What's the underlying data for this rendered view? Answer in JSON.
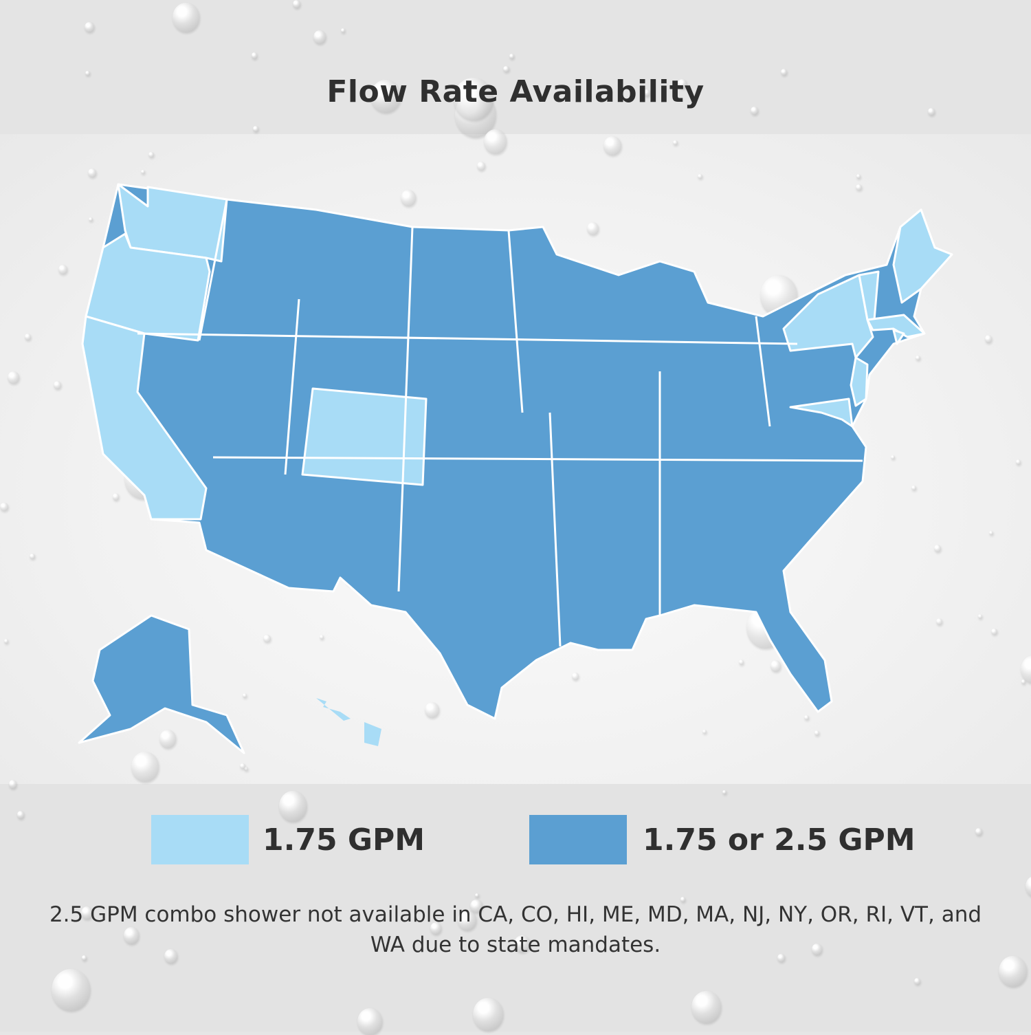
{
  "title": "Flow Rate Availability",
  "colors": {
    "light": "#a8dcf6",
    "dark": "#5b9fd2",
    "border": "#ffffff"
  },
  "legend": [
    {
      "label": "1.75 GPM",
      "color": "#a8dcf6"
    },
    {
      "label": "1.75 or 2.5 GPM",
      "color": "#5b9fd2"
    }
  ],
  "note": "2.5 GPM combo shower not available in CA, CO, HI, ME, MD, MA, NJ, NY, OR, RI, VT, and WA due to state mandates.",
  "map_data": {
    "light_states": [
      "CA",
      "CO",
      "HI",
      "ME",
      "MD",
      "MA",
      "NJ",
      "NY",
      "OR",
      "RI",
      "VT",
      "WA"
    ],
    "dark_states_category": "1.75 or 2.5 GPM",
    "light_states_category": "1.75 GPM"
  }
}
